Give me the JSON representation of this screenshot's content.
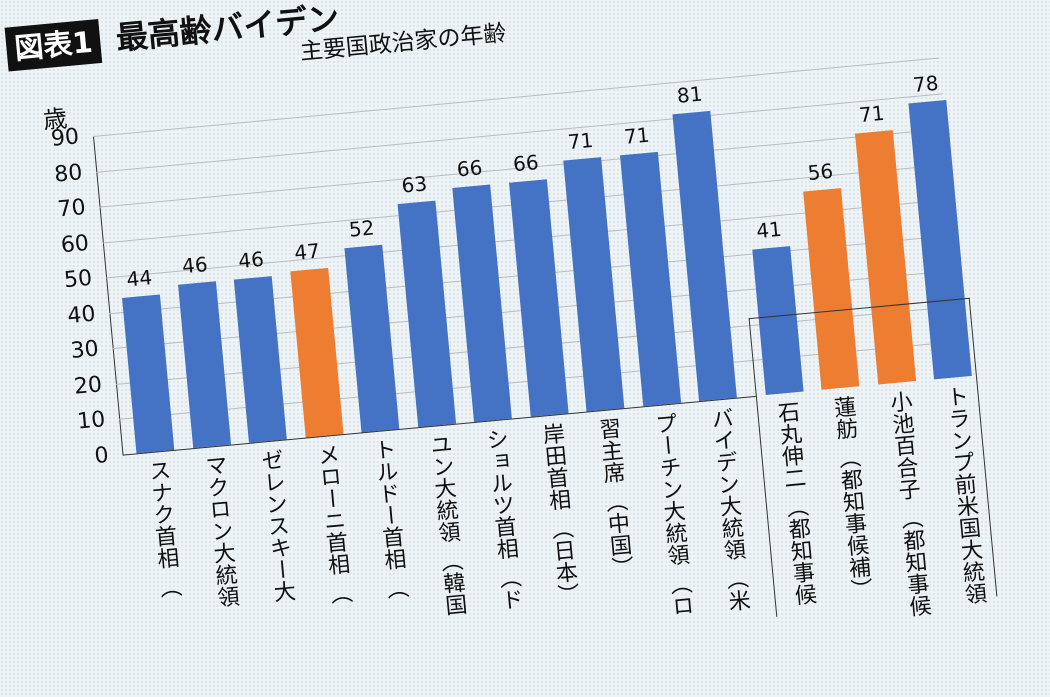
{
  "header": {
    "badge": "図表1",
    "headline": "最高齢バイデン",
    "subtitle": "主要国政治家の年齢"
  },
  "colors": {
    "blue": "#4472c4",
    "orange": "#ed7d31",
    "grid": "#b9bcbe"
  },
  "chart_data": {
    "type": "bar",
    "title": "主要国政治家の年齢",
    "ylabel": "歳",
    "xlabel": "",
    "ylim": [
      0,
      90
    ],
    "yticks": [
      0,
      10,
      20,
      30,
      40,
      50,
      60,
      70,
      80,
      90
    ],
    "grid": true,
    "categories": [
      "スナク首相（英）",
      "マクロン大統領（仏）",
      "ゼレンスキー大統領（ウ）",
      "メローニ首相（伊）",
      "トルドー首相（加）",
      "ユン大統領（韓国）",
      "ショルツ首相（ドイツ）",
      "岸田首相（日本）",
      "習主席（中国）",
      "プーチン大統領（ロシア）",
      "バイデン大統領（米国）",
      "石丸伸二（都知事候補）",
      "蓮舫（都知事候補）",
      "小池百合子（都知事候補）",
      "トランプ前米国大統領"
    ],
    "values": [
      44,
      46,
      46,
      47,
      52,
      63,
      66,
      66,
      71,
      71,
      81,
      41,
      56,
      71,
      78
    ],
    "bar_colors": [
      "blue",
      "blue",
      "blue",
      "orange",
      "blue",
      "blue",
      "blue",
      "blue",
      "blue",
      "blue",
      "blue",
      "blue",
      "orange",
      "orange",
      "blue"
    ],
    "annotation": "Bars for 石丸伸二, 蓮舫, 小池百合子 and トランプ are grouped in a separate boxed section"
  },
  "axis_labels": {
    "x_visible": [
      "スナク首相 （",
      "マクロン大統領",
      "ゼレンスキー大",
      "メローニ首相 （",
      "トルドー首相 （",
      "ユン大統領 （韓国",
      "ショルツ首相 （ド",
      "岸田首相 （日本）",
      "習主席 （中国）",
      "プーチン大統領 （ロ",
      "バイデン大統領 （米",
      "石丸伸二 （都知事候",
      "蓮舫 （都知事候補）",
      "小池百合子 （都知事候",
      "トランプ前米国大統領"
    ]
  }
}
